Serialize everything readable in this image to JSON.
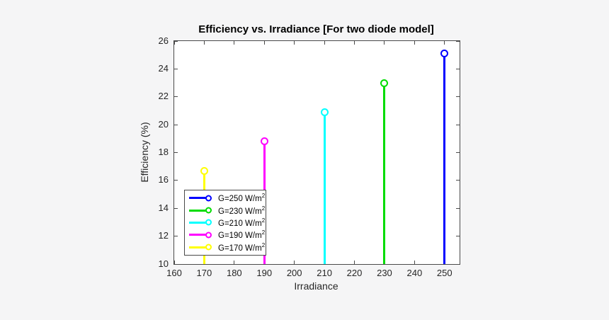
{
  "figure": {
    "background_color": "#f5f5f6",
    "plot_background": "#ffffff",
    "axis_color": "#4a4a4a",
    "text_color": "#262626"
  },
  "chart_data": {
    "type": "stem",
    "title": "Efficiency vs. Irradiance [For two diode model]",
    "xlabel": "Irradiance",
    "ylabel": "Efficiency (%)",
    "xlim": [
      160,
      255
    ],
    "ylim": [
      10,
      26
    ],
    "xticks": [
      160,
      170,
      180,
      190,
      200,
      210,
      220,
      230,
      240,
      250
    ],
    "yticks": [
      10,
      12,
      14,
      16,
      18,
      20,
      22,
      24,
      26
    ],
    "grid": false,
    "legend_position": "inside-bottom-left",
    "series": [
      {
        "name": "G=250 W/m^2",
        "legend_label": "G=250 W/m",
        "legend_sup": "2",
        "x": 250,
        "y": 25.1,
        "color": "#0000ff"
      },
      {
        "name": "G=230 W/m^2",
        "legend_label": "G=230 W/m",
        "legend_sup": "2",
        "x": 230,
        "y": 23.0,
        "color": "#00dc00"
      },
      {
        "name": "G=210 W/m^2",
        "legend_label": "G=210 W/m",
        "legend_sup": "2",
        "x": 210,
        "y": 20.9,
        "color": "#00ffff"
      },
      {
        "name": "G=190 W/m^2",
        "legend_label": "G=190 W/m",
        "legend_sup": "2",
        "x": 190,
        "y": 18.8,
        "color": "#ff00ff"
      },
      {
        "name": "G=170 W/m^2",
        "legend_label": "G=170 W/m",
        "legend_sup": "2",
        "x": 170,
        "y": 16.7,
        "color": "#ffff00"
      }
    ]
  }
}
